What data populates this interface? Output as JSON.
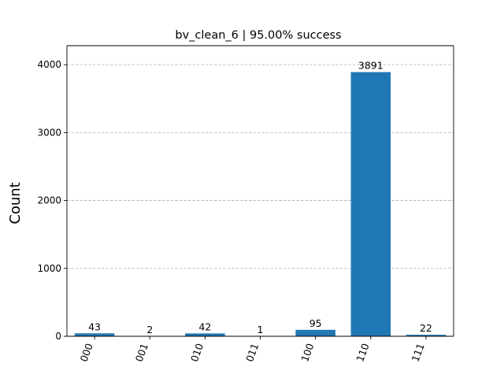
{
  "chart_data": {
    "type": "bar",
    "title": "bv_clean_6 | 95.00% success",
    "xlabel": "",
    "ylabel": "Count",
    "categories": [
      "000",
      "001",
      "010",
      "011",
      "100",
      "110",
      "111"
    ],
    "values": [
      43,
      2,
      42,
      1,
      95,
      3891,
      22
    ],
    "data_labels": [
      "43",
      "2",
      "42",
      "1",
      "95",
      "3891",
      "22"
    ],
    "ylim": [
      0,
      4280
    ],
    "yticks": [
      0,
      1000,
      2000,
      3000,
      4000
    ],
    "ytick_labels": [
      "0",
      "1000",
      "2000",
      "3000",
      "4000"
    ],
    "grid": "horizontal dashed",
    "bar_color": "#1f77b4",
    "grid_color": "#b0b0b0"
  }
}
